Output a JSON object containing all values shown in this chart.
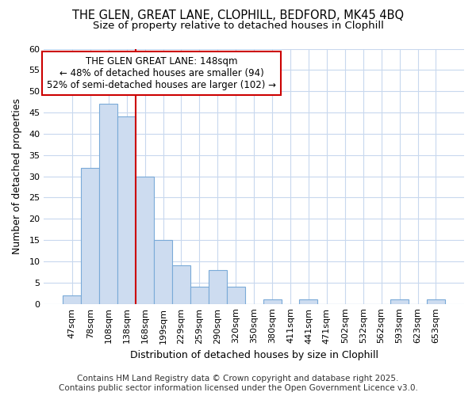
{
  "title_line1": "THE GLEN, GREAT LANE, CLOPHILL, BEDFORD, MK45 4BQ",
  "title_line2": "Size of property relative to detached houses in Clophill",
  "xlabel": "Distribution of detached houses by size in Clophill",
  "ylabel": "Number of detached properties",
  "bar_color": "#cddcf0",
  "bar_edgecolor": "#7aaad8",
  "background_color": "#ffffff",
  "plot_bg_color": "#ffffff",
  "grid_color": "#c8d8ee",
  "categories": [
    "47sqm",
    "78sqm",
    "108sqm",
    "138sqm",
    "168sqm",
    "199sqm",
    "229sqm",
    "259sqm",
    "290sqm",
    "320sqm",
    "350sqm",
    "380sqm",
    "411sqm",
    "441sqm",
    "471sqm",
    "502sqm",
    "532sqm",
    "562sqm",
    "593sqm",
    "623sqm",
    "653sqm"
  ],
  "values": [
    2,
    32,
    47,
    44,
    30,
    15,
    9,
    4,
    8,
    4,
    0,
    1,
    0,
    1,
    0,
    0,
    0,
    0,
    1,
    0,
    1
  ],
  "redline_x": 3.5,
  "annotation_text": "THE GLEN GREAT LANE: 148sqm\n← 48% of detached houses are smaller (94)\n52% of semi-detached houses are larger (102) →",
  "annotation_box_color": "#ffffff",
  "annotation_box_edgecolor": "#cc0000",
  "redline_color": "#cc0000",
  "ylim": [
    0,
    60
  ],
  "yticks": [
    0,
    5,
    10,
    15,
    20,
    25,
    30,
    35,
    40,
    45,
    50,
    55,
    60
  ],
  "footer_line1": "Contains HM Land Registry data © Crown copyright and database right 2025.",
  "footer_line2": "Contains public sector information licensed under the Open Government Licence v3.0.",
  "title_fontsize": 10.5,
  "subtitle_fontsize": 9.5,
  "axis_label_fontsize": 9,
  "tick_fontsize": 8,
  "annotation_fontsize": 8.5,
  "footer_fontsize": 7.5
}
